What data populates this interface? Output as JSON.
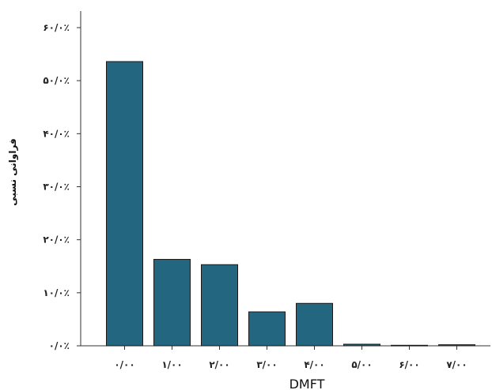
{
  "chart_data": {
    "type": "bar",
    "categories": [
      "۰/۰۰",
      "۱/۰۰",
      "۲/۰۰",
      "۳/۰۰",
      "۴/۰۰",
      "۵/۰۰",
      "۶/۰۰",
      "۷/۰۰"
    ],
    "values": [
      53.6,
      16.3,
      15.3,
      6.4,
      8.0,
      0.3,
      0.1,
      0.2
    ],
    "xlabel": "DMFT",
    "ylabel": "فراوانی نسبی",
    "ylim": [
      0,
      60
    ],
    "yticks": [
      0,
      10,
      20,
      30,
      40,
      50,
      60
    ],
    "ytick_labels": [
      "۰/۰٪",
      "۱۰/۰٪",
      "۲۰/۰٪",
      "۳۰/۰٪",
      "۴۰/۰٪",
      "۵۰/۰٪",
      "۶۰/۰٪"
    ],
    "grid": false,
    "legend": "none",
    "colors": {
      "bar_fill": "#236680",
      "bar_stroke": "#1a1a1a",
      "axis": "#333333"
    }
  }
}
